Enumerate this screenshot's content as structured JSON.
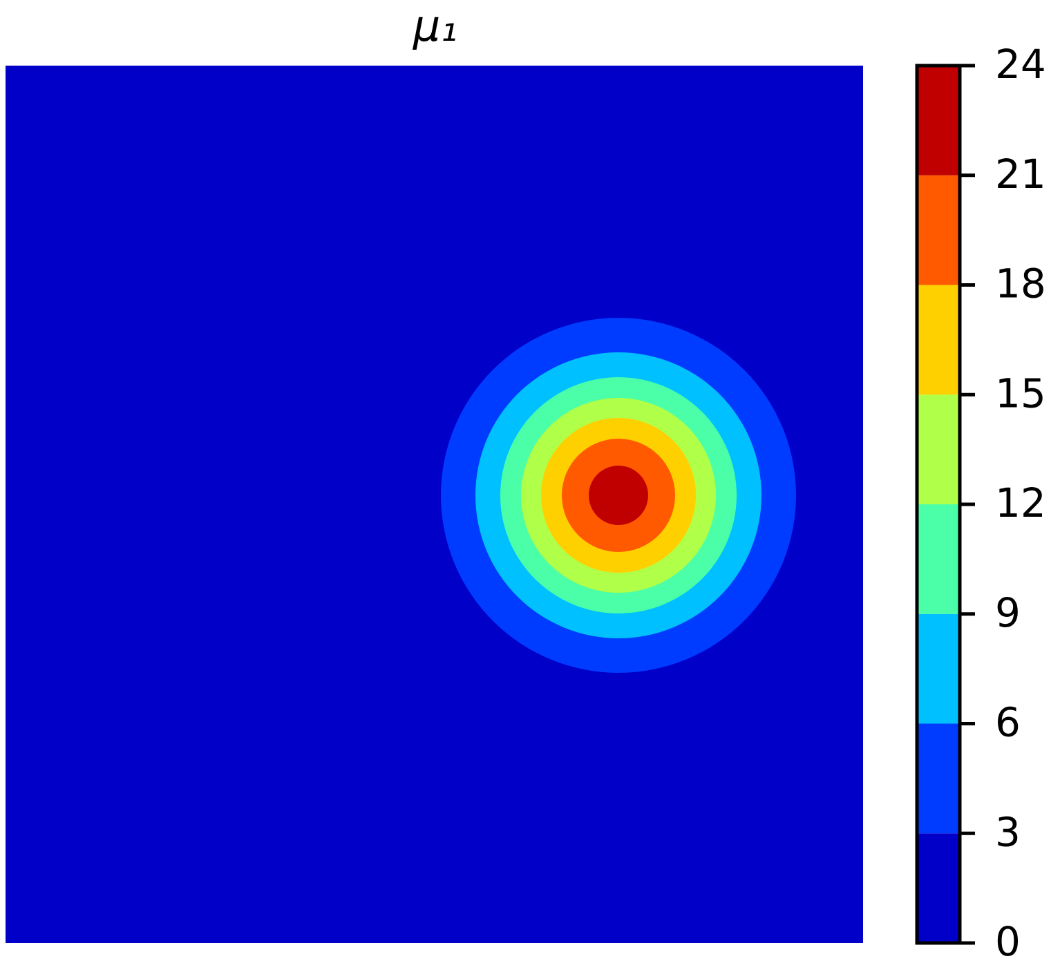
{
  "chart_data": {
    "type": "contour",
    "title": "μ₁",
    "levels": [
      0,
      3,
      6,
      9,
      12,
      15,
      18,
      21,
      24
    ],
    "colors": [
      "#0000c8",
      "#003cff",
      "#00c0ff",
      "#4affa8",
      "#b0ff48",
      "#ffd000",
      "#ff5a00",
      "#c00000"
    ],
    "clim": [
      0,
      24
    ]
  }
}
